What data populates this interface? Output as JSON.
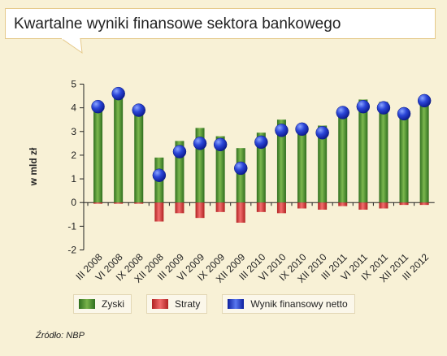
{
  "title": "Kwartalne wyniki finansowe sektora bankowego",
  "source": "Źródło: NBP",
  "chart_data": {
    "type": "bar",
    "ylabel": "w mld zł",
    "ylim": [
      -2,
      5
    ],
    "yticks": [
      5,
      4,
      3,
      2,
      1,
      0,
      -1,
      -2
    ],
    "grid": false,
    "legend_position": "bottom",
    "categories": [
      "III 2008",
      "VI 2008",
      "IX 2008",
      "XII 2008",
      "III 2009",
      "VI 2009",
      "IX 2009",
      "XII 2009",
      "III 2010",
      "VI 2010",
      "IX 2010",
      "XII 2010",
      "III 2011",
      "VI 2011",
      "IX 2011",
      "XII 2011",
      "III 2012"
    ],
    "series": [
      {
        "name": "Zyski",
        "type": "bar",
        "color": "#4f8f2f",
        "values": [
          4.1,
          4.6,
          3.9,
          1.9,
          2.6,
          3.15,
          2.8,
          2.3,
          2.95,
          3.5,
          3.25,
          3.25,
          3.95,
          4.35,
          4.25,
          3.85,
          4.35
        ]
      },
      {
        "name": "Straty",
        "type": "bar",
        "color": "#e04848",
        "values": [
          -0.05,
          -0.05,
          -0.05,
          -0.8,
          -0.45,
          -0.65,
          -0.4,
          -0.85,
          -0.4,
          -0.45,
          -0.25,
          -0.3,
          -0.15,
          -0.3,
          -0.25,
          -0.1,
          -0.1
        ]
      },
      {
        "name": "Wynik finansowy netto",
        "type": "marker",
        "color": "#2b46d8",
        "values": [
          4.05,
          4.6,
          3.9,
          1.15,
          2.15,
          2.5,
          2.45,
          1.45,
          2.55,
          3.05,
          3.1,
          2.95,
          3.8,
          4.05,
          4.0,
          3.75,
          4.3
        ]
      }
    ]
  }
}
